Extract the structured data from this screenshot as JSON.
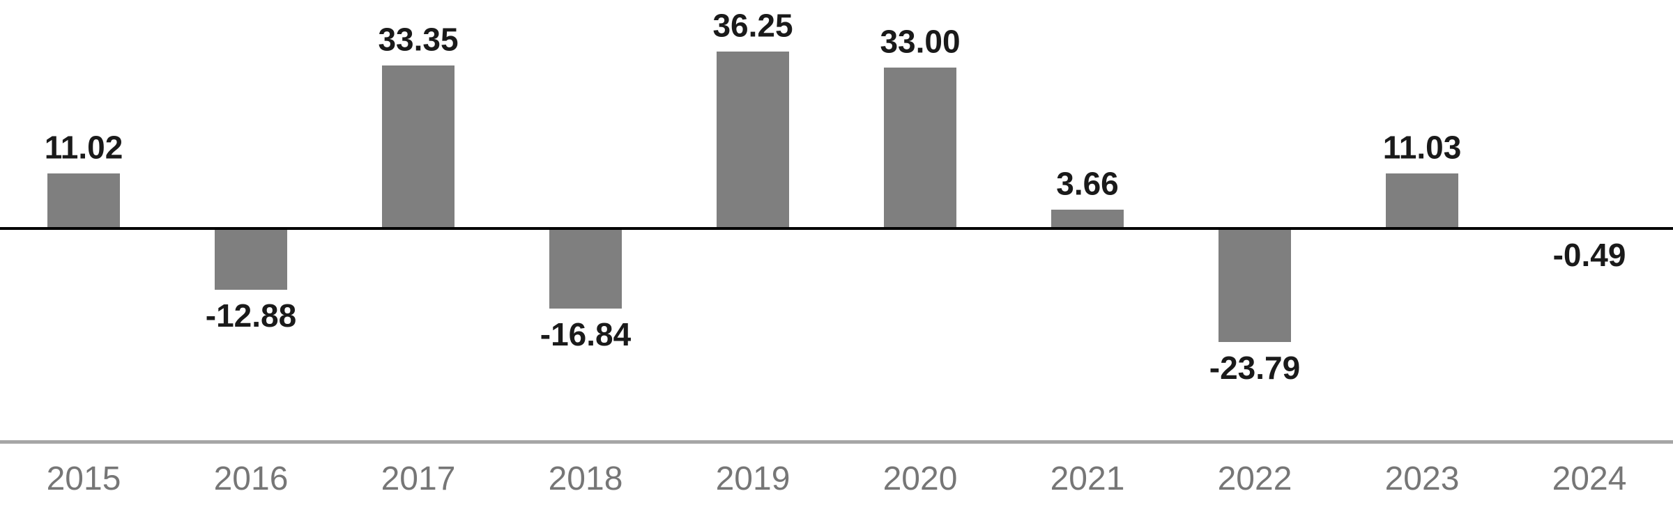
{
  "chart_data": {
    "type": "bar",
    "categories": [
      "2015",
      "2016",
      "2017",
      "2018",
      "2019",
      "2020",
      "2021",
      "2022",
      "2023",
      "2024"
    ],
    "values": [
      11.02,
      -12.88,
      33.35,
      -16.84,
      36.25,
      33.0,
      3.66,
      -23.79,
      11.03,
      -0.49
    ],
    "value_labels": [
      "11.02",
      "-12.88",
      "33.35",
      "-16.84",
      "36.25",
      "33.00",
      "3.66",
      "-23.79",
      "11.03",
      "-0.49"
    ],
    "title": "",
    "xlabel": "",
    "ylabel": "",
    "ylim": [
      -30,
      45
    ],
    "grid": false,
    "legend": "none",
    "zero_line": true
  },
  "style": {
    "bar_color": "#7f7f7f",
    "zero_line_color": "#000000",
    "baseline_color": "#a6a6a6",
    "value_label_color": "#1a1a1a",
    "tick_label_color": "#767676"
  }
}
